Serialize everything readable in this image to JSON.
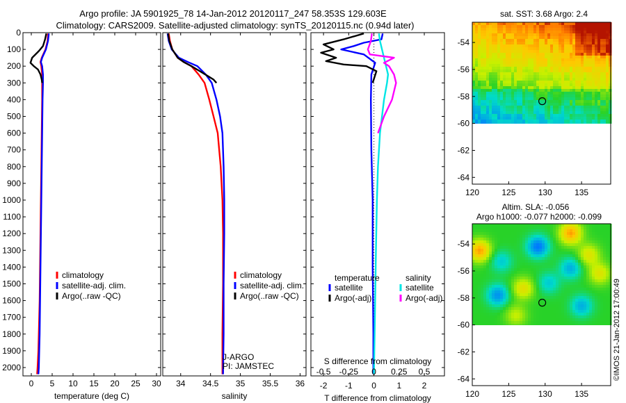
{
  "header": {
    "line1": "Argo profile: JA 5901925_78 14-Jan-2012 20120117_247 58.353S 129.603E",
    "line2": "Climatology: CARS2009. Satellite-adjusted climatology: synTS_20120115.nc (0.94d later)"
  },
  "credit": "©IMOS 21-Jan-2012 17:00:49",
  "colors": {
    "climatology": "#ff0000",
    "satellite": "#0000ff",
    "argo": "#000000",
    "satellite_salinity": "#00e5e5",
    "argo_salinity": "#ff00ff"
  },
  "chart_data": [
    {
      "id": "temperature",
      "type": "line",
      "xlabel": "temperature (deg C)",
      "ylabel": "",
      "xlim": [
        -2,
        31
      ],
      "ylim": [
        2050,
        0
      ],
      "x_ticks": [
        0,
        5,
        10,
        15,
        20,
        25,
        30
      ],
      "y_ticks": [
        0,
        100,
        200,
        300,
        400,
        500,
        600,
        700,
        800,
        900,
        1000,
        1100,
        1200,
        1300,
        1400,
        1500,
        1600,
        1700,
        1800,
        1900,
        2000
      ],
      "legend": [
        "climatology",
        "satellite-adj. clim.",
        "Argo(..raw -QC)"
      ],
      "series": [
        {
          "name": "climatology",
          "color": "#ff0000",
          "x": [
            4.0,
            3.9,
            3.4,
            2.5,
            2.2,
            2.4,
            2.6,
            2.6,
            2.6,
            2.5,
            2.4,
            2.3,
            2.2,
            2.1,
            2.0,
            1.9,
            1.8,
            1.7,
            1.6,
            1.5,
            1.4
          ],
          "y": [
            5,
            50,
            100,
            150,
            175,
            200,
            250,
            300,
            400,
            600,
            800,
            1000,
            1200,
            1400,
            1600,
            1700,
            1800,
            1900,
            1950,
            2000,
            2040
          ]
        },
        {
          "name": "satellite-adj. clim.",
          "color": "#0000ff",
          "x": [
            4.2,
            4.0,
            3.5,
            2.6,
            2.3,
            2.6,
            2.8,
            2.8,
            2.7,
            2.6,
            2.5,
            2.4,
            2.3,
            2.2,
            2.1,
            2.0,
            1.9,
            1.8,
            1.7
          ],
          "y": [
            5,
            50,
            100,
            150,
            175,
            200,
            250,
            300,
            400,
            600,
            800,
            1000,
            1200,
            1400,
            1600,
            1800,
            1900,
            2000,
            2040
          ]
        },
        {
          "name": "Argo(..raw -QC)",
          "color": "#000000",
          "x": [
            3.6,
            3.3,
            2.8,
            1.8,
            0.2,
            -0.2,
            0.6,
            1.6,
            2.2,
            2.5,
            2.6
          ],
          "y": [
            5,
            40,
            80,
            110,
            150,
            180,
            200,
            220,
            250,
            280,
            300
          ]
        }
      ]
    },
    {
      "id": "salinity",
      "type": "line",
      "xlabel": "salinity",
      "ylabel": "",
      "xlim": [
        33.7,
        36.1
      ],
      "ylim": [
        2050,
        0
      ],
      "x_ticks": [
        34,
        34.5,
        35,
        35.5,
        36
      ],
      "legend": [
        "climatology",
        "satellite-adj. clim.",
        "Argo(..raw -QC)"
      ],
      "annotations": [
        "J-ARGO",
        "PI: JAMSTEC"
      ],
      "series": [
        {
          "name": "climatology",
          "color": "#ff0000",
          "x": [
            33.8,
            33.82,
            33.86,
            33.95,
            34.05,
            34.18,
            34.3,
            34.4,
            34.48,
            34.55,
            34.62,
            34.67,
            34.7,
            34.71,
            34.71,
            34.7,
            34.7
          ],
          "y": [
            5,
            50,
            100,
            150,
            175,
            200,
            250,
            300,
            400,
            500,
            600,
            800,
            1000,
            1200,
            1500,
            1800,
            2040
          ]
        },
        {
          "name": "satellite-adj. clim.",
          "color": "#0000ff",
          "x": [
            33.78,
            33.8,
            33.85,
            33.97,
            34.12,
            34.28,
            34.42,
            34.52,
            34.6,
            34.66,
            34.7,
            34.72,
            34.73,
            34.73,
            34.72,
            34.72,
            34.71
          ],
          "y": [
            5,
            50,
            100,
            150,
            175,
            200,
            250,
            300,
            400,
            500,
            600,
            800,
            1000,
            1200,
            1500,
            1800,
            2040
          ]
        },
        {
          "name": "Argo(..raw -QC)",
          "color": "#000000",
          "x": [
            33.79,
            33.81,
            33.86,
            33.95,
            34.05,
            34.18,
            34.32,
            34.46,
            34.55,
            34.6
          ],
          "y": [
            5,
            50,
            100,
            150,
            175,
            200,
            230,
            260,
            280,
            300
          ]
        }
      ]
    },
    {
      "id": "difference",
      "type": "line",
      "xlabel": "T difference from climatology",
      "x2label": "S difference from climatology",
      "xlim": [
        -2.5,
        2.8
      ],
      "x2lim": [
        -0.625,
        0.7
      ],
      "ylim": [
        2050,
        0
      ],
      "x_ticks": [
        -2,
        -1,
        0,
        1,
        2
      ],
      "x2_ticks": [
        -0.5,
        -0.25,
        0,
        0.25,
        0.5
      ],
      "x2_tick_labels": [
        "-0.5",
        "-0.25",
        "0",
        "0.25",
        "0.5"
      ],
      "legend": {
        "temperature_heading": "temperature",
        "salinity_heading": "salinity",
        "temperature": [
          "satellite",
          "Argo(-adj)"
        ],
        "salinity": [
          "satellite",
          "Argo(-adj)"
        ]
      },
      "series": [
        {
          "name": "satellite",
          "group": "temperature",
          "axis": "T",
          "color": "#0000ff",
          "x": [
            0.35,
            0.3,
            -0.4,
            -0.8,
            -1.3,
            -0.4,
            0.05,
            -0.1,
            -0.12,
            -0.1,
            -0.05,
            -0.05,
            -0.02,
            -0.02
          ],
          "y": [
            5,
            40,
            60,
            80,
            100,
            130,
            180,
            250,
            400,
            700,
            1000,
            1400,
            1800,
            2040
          ]
        },
        {
          "name": "satellite",
          "group": "salinity",
          "axis": "S",
          "color": "#00e5e5",
          "x": [
            0.05,
            0.06,
            0.08,
            0.1,
            0.12,
            0.14,
            0.13,
            0.1,
            0.06,
            0.04,
            0.03,
            0.02,
            0.01,
            0.0
          ],
          "y": [
            5,
            50,
            100,
            150,
            200,
            250,
            300,
            400,
            600,
            800,
            1000,
            1300,
            1700,
            2040
          ]
        },
        {
          "name": "Argo(-adj)",
          "group": "temperature",
          "axis": "T",
          "color": "#000000",
          "x": [
            -0.4,
            -1.2,
            -2.0,
            -1.6,
            -2.1,
            -1.5,
            -1.9,
            -1.2,
            -0.3,
            0.1,
            -0.05
          ],
          "y": [
            5,
            40,
            70,
            100,
            120,
            150,
            170,
            190,
            200,
            230,
            300
          ]
        },
        {
          "name": "Argo(-adj)",
          "group": "salinity",
          "axis": "S",
          "color": "#ff00ff",
          "x": [
            -0.02,
            -0.03,
            -0.06,
            -0.04,
            0.2,
            0.1,
            0.15,
            0.2,
            0.22,
            0.18,
            0.1,
            0.04
          ],
          "y": [
            5,
            50,
            100,
            130,
            150,
            180,
            200,
            250,
            300,
            400,
            500,
            600
          ]
        }
      ]
    },
    {
      "id": "sst-map",
      "type": "heatmap",
      "title": "sat. SST: 3.68 Argo: 2.4",
      "xlim": [
        120,
        139
      ],
      "ylim": [
        -64.5,
        -52.5
      ],
      "x_ticks": [
        120,
        125,
        130,
        135
      ],
      "y_ticks": [
        -54,
        -56,
        -58,
        -60,
        -62,
        -64
      ],
      "data_south_limit": -60,
      "marker": {
        "lon": 129.603,
        "lat": -58.353
      }
    },
    {
      "id": "sla-map",
      "type": "heatmap",
      "title": "Altim. SLA: -0.056",
      "subtitle": "Argo h1000: -0.077 h2000: -0.099",
      "xlim": [
        120,
        139
      ],
      "ylim": [
        -64.5,
        -52.5
      ],
      "x_ticks": [
        120,
        125,
        130,
        135
      ],
      "y_ticks": [
        -54,
        -56,
        -58,
        -60,
        -62,
        -64
      ],
      "data_south_limit": -60,
      "marker": {
        "lon": 129.603,
        "lat": -58.353
      }
    }
  ]
}
